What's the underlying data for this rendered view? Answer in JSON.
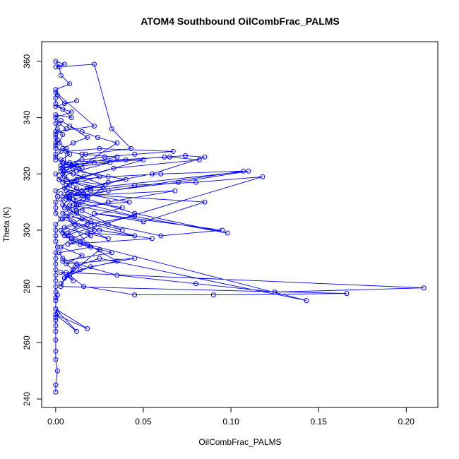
{
  "chart_data": {
    "type": "scatter",
    "title": "ATOM4 Southbound OilCombFrac_PALMS",
    "xlabel": "OilCombFrac_PALMS",
    "ylabel": "Theta (K)",
    "xlim": [
      -0.008,
      0.218
    ],
    "ylim": [
      237.0,
      367.0
    ],
    "x_ticks": [
      0.0,
      0.05,
      0.1,
      0.15,
      0.2
    ],
    "x_tick_labels": [
      "0.00",
      "0.05",
      "0.10",
      "0.15",
      "0.20"
    ],
    "y_ticks": [
      240,
      260,
      280,
      300,
      320,
      340,
      360
    ],
    "y_tick_labels": [
      "240",
      "260",
      "280",
      "300",
      "320",
      "340",
      "360"
    ],
    "grid": false,
    "legend": "none",
    "marker": "open-circle",
    "connected": true,
    "series_color": "#0000ff",
    "series": [
      {
        "x": [
          0.0,
          0.0,
          0.001,
          0.0,
          0.0,
          0.0,
          0.0,
          0.0,
          0.0,
          0.0,
          0.0,
          0.001,
          0.0,
          0.012,
          0.0,
          0.018,
          0.0,
          0.0,
          0.001,
          0.0,
          0.0,
          0.0,
          0.0,
          0.0,
          0.0,
          0.0,
          0.0,
          0.0,
          0.001,
          0.0,
          0.0,
          0.0,
          0.0,
          0.003,
          0.0,
          0.0,
          0.0,
          0.001,
          0.0,
          0.008,
          0.002,
          0.0,
          0.015,
          0.004,
          0.0,
          0.003,
          0.0,
          0.001,
          0.0,
          0.006,
          0.002,
          0.0,
          0.009,
          0.0,
          0.012,
          0.005,
          0.001,
          0.0,
          0.008,
          0.003,
          0.002,
          0.0,
          0.005,
          0.0,
          0.022,
          0.032,
          0.043,
          0.017,
          0.009,
          0.004,
          0.002,
          0.027,
          0.015,
          0.006,
          0.018,
          0.143,
          0.025,
          0.011,
          0.005,
          0.003,
          0.166,
          0.09,
          0.045,
          0.016,
          0.006,
          0.01,
          0.003,
          0.21,
          0.125,
          0.08,
          0.035,
          0.012,
          0.004,
          0.002,
          0.02,
          0.014,
          0.007,
          0.003,
          0.011,
          0.03,
          0.018,
          0.045,
          0.022,
          0.009,
          0.038,
          0.015,
          0.004,
          0.008,
          0.003,
          0.013,
          0.006,
          0.02,
          0.009,
          0.016,
          0.003,
          0.006,
          0.028,
          0.01,
          0.004,
          0.031,
          0.012,
          0.04,
          0.018,
          0.007,
          0.085,
          0.05,
          0.022,
          0.095,
          0.06,
          0.03,
          0.012,
          0.005,
          0.042,
          0.016,
          0.006,
          0.025,
          0.01,
          0.004,
          0.065,
          0.082,
          0.033,
          0.012,
          0.005,
          0.018,
          0.008,
          0.098,
          0.045,
          0.018,
          0.006,
          0.11,
          0.07,
          0.03,
          0.01,
          0.038,
          0.015,
          0.005,
          0.02,
          0.007,
          0.055,
          0.025,
          0.01,
          0.004,
          0.012,
          0.006,
          0.068,
          0.03,
          0.012,
          0.004,
          0.022,
          0.009,
          0.003,
          0.015,
          0.006,
          0.045,
          0.02,
          0.008,
          0.003,
          0.01,
          0.004,
          0.032,
          0.014,
          0.005,
          0.118,
          0.08,
          0.045,
          0.02,
          0.008,
          0.107,
          0.06,
          0.03,
          0.012,
          0.004,
          0.05,
          0.022,
          0.009,
          0.003,
          0.035,
          0.015,
          0.006,
          0.025,
          0.067,
          0.045,
          0.028,
          0.015,
          0.008,
          0.003,
          0.04,
          0.062,
          0.074,
          0.085,
          0.055,
          0.03,
          0.015,
          0.006,
          0.045,
          0.018,
          0.007,
          0.035,
          0.014,
          0.005,
          0.025,
          0.01,
          0.004,
          0.02,
          0.008,
          0.003,
          0.012,
          0.005,
          0.035,
          0.024,
          0.015,
          0.008,
          0.003,
          0.018,
          0.01,
          0.004,
          0.008,
          0.003,
          0.012,
          0.005,
          0.006,
          0.002,
          0.004,
          0.001,
          0.0,
          0.0,
          0.009,
          0.004,
          0.0,
          0.0,
          0.0,
          0.022,
          0.0,
          0.0,
          0.0,
          0.0,
          0.0,
          0.0
        ],
        "y": [
          242.5,
          245.0,
          250.0,
          254.0,
          257.0,
          261.0,
          264.0,
          266.0,
          268.0,
          270.0,
          269.0,
          270.5,
          272.0,
          264.0,
          270.0,
          265.0,
          272.0,
          275.0,
          277.0,
          276.0,
          278.0,
          280.0,
          282.0,
          284.0,
          286.0,
          288.0,
          290.0,
          292.0,
          294.0,
          296.0,
          298.0,
          300.0,
          302.0,
          304.0,
          306.0,
          308.0,
          310.0,
          312.0,
          314.0,
          316.0,
          318.0,
          320.0,
          322.0,
          324.0,
          326.0,
          328.0,
          330.0,
          332.0,
          334.0,
          336.0,
          338.0,
          340.0,
          342.0,
          344.0,
          346.0,
          345.0,
          348.0,
          350.0,
          352.0,
          355.0,
          358.0,
          360.0,
          359.0,
          358.0,
          359.0,
          336.0,
          329.0,
          327.0,
          323.0,
          320.0,
          318.0,
          315.0,
          310.0,
          305.0,
          295.0,
          275.0,
          290.0,
          287.0,
          283.0,
          280.0,
          277.5,
          277.0,
          277.0,
          280.0,
          285.0,
          282.0,
          285.0,
          279.5,
          278.0,
          281.0,
          284.0,
          288.0,
          290.0,
          292.0,
          294.0,
          296.0,
          298.0,
          300.0,
          302.0,
          297.0,
          299.0,
          298.0,
          302.0,
          305.0,
          300.0,
          307.0,
          309.0,
          311.0,
          313.0,
          309.0,
          312.0,
          315.0,
          317.0,
          319.0,
          321.0,
          318.0,
          316.0,
          320.0,
          322.0,
          324.0,
          321.0,
          318.0,
          315.0,
          313.0,
          310.0,
          303.0,
          306.0,
          300.0,
          298.0,
          302.0,
          306.0,
          308.0,
          310.0,
          313.0,
          316.0,
          319.0,
          322.0,
          324.0,
          326.0,
          325.0,
          322.0,
          318.0,
          315.0,
          312.0,
          309.0,
          299.0,
          306.0,
          311.0,
          314.0,
          321.0,
          317.0,
          314.0,
          311.0,
          308.0,
          304.0,
          301.0,
          298.0,
          295.0,
          297.0,
          300.0,
          303.0,
          306.0,
          309.0,
          312.0,
          314.0,
          310.0,
          307.0,
          304.0,
          300.0,
          297.0,
          294.0,
          291.0,
          288.0,
          290.0,
          287.0,
          284.0,
          281.0,
          286.0,
          289.0,
          292.0,
          295.0,
          298.0,
          319.0,
          317.0,
          316.0,
          314.0,
          312.0,
          321.0,
          320.0,
          319.0,
          318.0,
          317.0,
          325.0,
          324.0,
          323.0,
          322.0,
          326.0,
          327.0,
          328.0,
          329.0,
          328.0,
          327.0,
          326.0,
          325.0,
          324.0,
          323.0,
          325.0,
          326.0,
          326.5,
          326.0,
          320.0,
          317.0,
          314.0,
          311.0,
          305.0,
          302.0,
          299.0,
          289.0,
          286.0,
          283.0,
          293.0,
          296.0,
          299.0,
          303.0,
          307.0,
          311.0,
          315.0,
          319.0,
          331.0,
          333.0,
          335.0,
          337.0,
          339.0,
          333.0,
          331.0,
          329.0,
          327.0,
          325.0,
          323.0,
          321.0,
          329.0,
          331.0,
          334.0,
          336.0,
          338.0,
          341.0,
          340.0,
          343.0,
          345.0,
          347.0,
          349.0,
          337.0,
          335.0,
          333.0,
          331.0,
          329.0,
          327.0,
          325.0
        ]
      }
    ]
  }
}
